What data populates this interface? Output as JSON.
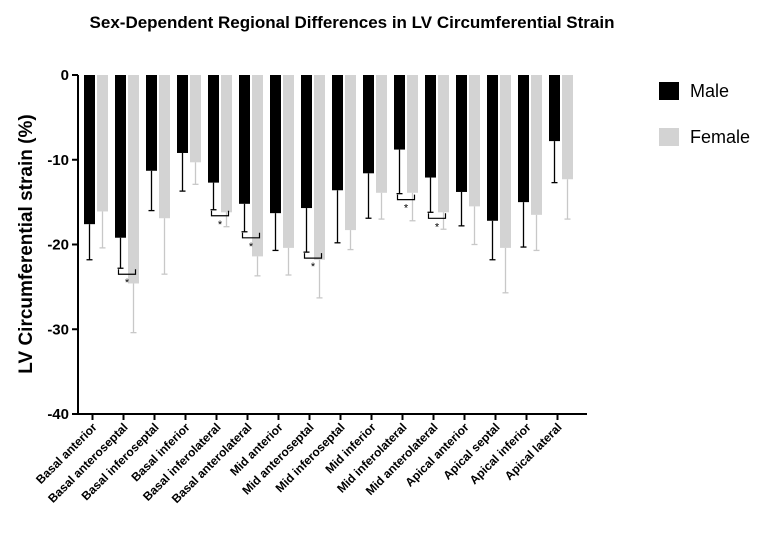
{
  "chart_data": {
    "type": "bar",
    "title": "Sex-Dependent Regional Differences in LV Circumferential Strain",
    "xlabel": "",
    "ylabel": "LV Circumferential strain (%)",
    "ylim": [
      -40,
      0
    ],
    "yticks": [
      0,
      -10,
      -20,
      -30,
      -40
    ],
    "ytick_labels": [
      "0",
      "-10",
      "-20",
      "-30",
      "-40"
    ],
    "legend_position": "top-right",
    "categories": [
      "Basal anterior",
      "Basal anteroseptal",
      "Basal inferoseptal",
      "Basal inferior",
      "Basal inferolateral",
      "Basal anterolateral",
      "Mid anterior",
      "Mid anteroseptal",
      "Mid inferoseptal",
      "Mid inferior",
      "Mid inferolateral",
      "Mid anterolateral",
      "Apical anterior",
      "Apical septal",
      "Apical inferior",
      "Apical lateral"
    ],
    "series": [
      {
        "name": "Male",
        "color": "#000000",
        "values": [
          -17.6,
          -19.2,
          -11.3,
          -9.2,
          -12.7,
          -15.2,
          -16.3,
          -15.7,
          -13.6,
          -11.6,
          -8.8,
          -12.1,
          -13.8,
          -17.2,
          -15.0,
          -7.8
        ],
        "errors": [
          4.2,
          3.6,
          4.7,
          4.5,
          3.2,
          3.3,
          4.4,
          5.2,
          6.2,
          5.3,
          5.2,
          4.1,
          4.0,
          4.6,
          5.3,
          4.9
        ]
      },
      {
        "name": "Female",
        "color": "#d3d3d3",
        "values": [
          -16.1,
          -24.6,
          -16.9,
          -10.3,
          -16.2,
          -21.4,
          -20.4,
          -21.8,
          -18.3,
          -13.9,
          -13.9,
          -16.2,
          -15.5,
          -20.4,
          -16.5,
          -12.3
        ],
        "errors": [
          4.3,
          5.8,
          6.6,
          2.6,
          1.7,
          2.3,
          3.2,
          4.5,
          2.3,
          3.1,
          3.3,
          2.0,
          4.5,
          5.3,
          4.2,
          4.7
        ]
      }
    ],
    "significance": [
      {
        "category_index": 1,
        "label": "*"
      },
      {
        "category_index": 4,
        "label": "*"
      },
      {
        "category_index": 5,
        "label": "*"
      },
      {
        "category_index": 7,
        "label": "*"
      },
      {
        "category_index": 10,
        "label": "*"
      },
      {
        "category_index": 11,
        "label": "*"
      }
    ]
  }
}
